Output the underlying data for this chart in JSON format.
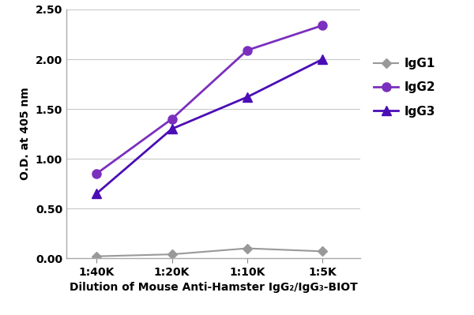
{
  "x_labels": [
    "1:40K",
    "1:20K",
    "1:10K",
    "1:5K"
  ],
  "x_values": [
    1,
    2,
    3,
    4
  ],
  "IgG1_values": [
    0.02,
    0.04,
    0.1,
    0.07
  ],
  "IgG2_values": [
    0.85,
    1.4,
    2.09,
    2.34
  ],
  "IgG3_values": [
    0.65,
    1.3,
    1.62,
    2.0
  ],
  "IgG1_color": "#999999",
  "IgG2_color": "#7B2FBE",
  "IgG3_color": "#4B0DB5",
  "IgG1_marker": "D",
  "IgG2_marker": "o",
  "IgG3_marker": "^",
  "ylim": [
    0.0,
    2.5
  ],
  "yticks": [
    0.0,
    0.5,
    1.0,
    1.5,
    2.0,
    2.5
  ],
  "ylabel": "O.D. at 405 nm",
  "xlabel": "Dilution of Mouse Anti-Hamster IgG₂/IgG₃-BIOT",
  "legend_labels": [
    "IgG1",
    "IgG2",
    "IgG3"
  ],
  "background_color": "#ffffff",
  "grid_color": "#c8c8c8"
}
